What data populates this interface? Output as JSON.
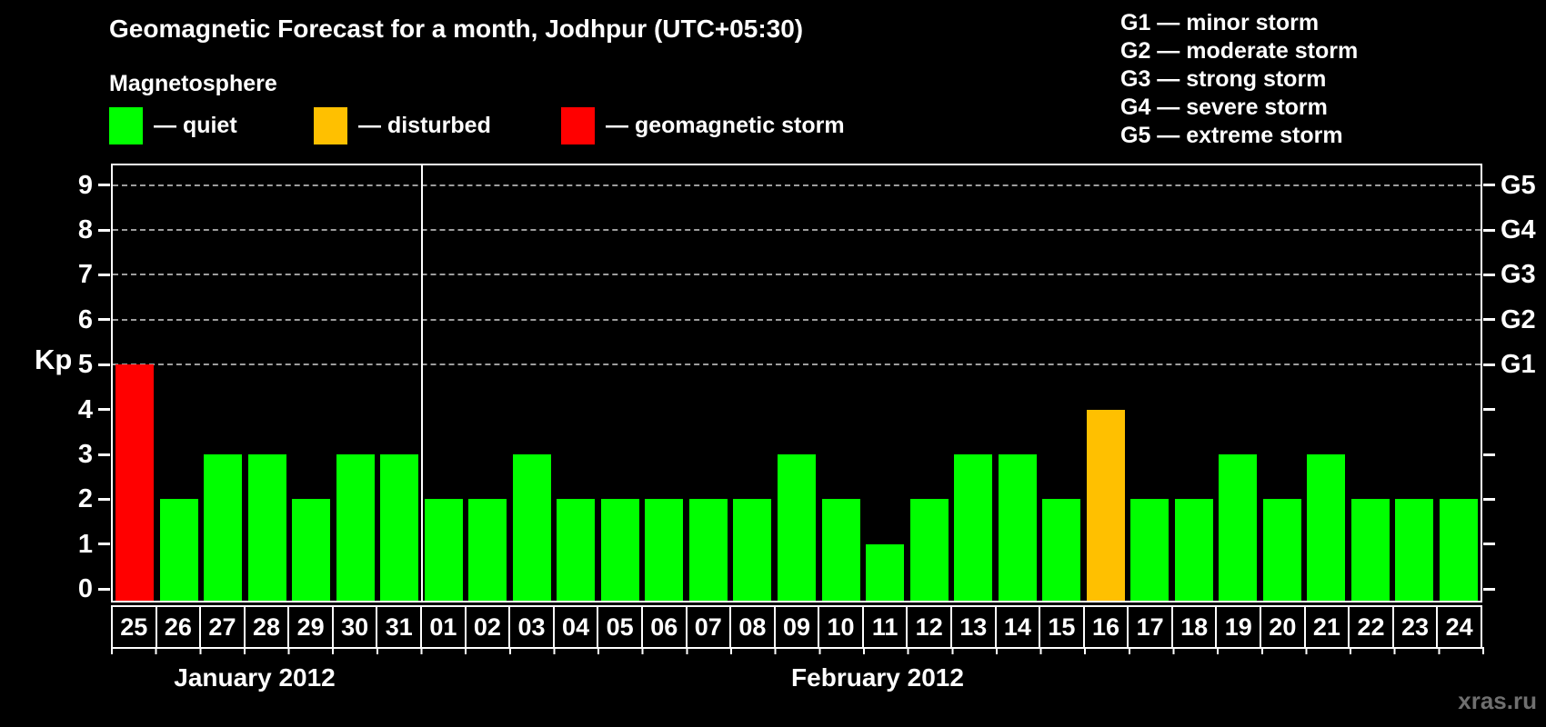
{
  "title": "Geomagnetic Forecast for a month, Jodhpur (UTC+05:30)",
  "legend": {
    "heading": "Magnetosphere",
    "items": [
      {
        "name": "quiet",
        "label": "— quiet",
        "color": "#00ff00"
      },
      {
        "name": "disturbed",
        "label": "— disturbed",
        "color": "#ffc000"
      },
      {
        "name": "storm",
        "label": "— geomagnetic storm",
        "color": "#ff0000"
      }
    ]
  },
  "storm_scale": [
    "G1 — minor storm",
    "G2 — moderate storm",
    "G3 — strong storm",
    "G4 — severe storm",
    "G5 — extreme storm"
  ],
  "watermark": "xras.ru",
  "chart_data": {
    "type": "bar",
    "title": "Geomagnetic Forecast for a month, Jodhpur (UTC+05:30)",
    "ylabel": "Kp",
    "ylim": [
      0,
      9
    ],
    "yticks": [
      0,
      1,
      2,
      3,
      4,
      5,
      6,
      7,
      8,
      9
    ],
    "dashed_gridlines_at": [
      5,
      6,
      7,
      8,
      9
    ],
    "right_axis": [
      {
        "value": 5,
        "label": "G1"
      },
      {
        "value": 6,
        "label": "G2"
      },
      {
        "value": 7,
        "label": "G3"
      },
      {
        "value": 8,
        "label": "G4"
      },
      {
        "value": 9,
        "label": "G5"
      }
    ],
    "thresholds": {
      "storm_min_kp": 5,
      "disturbed_min_kp": 4
    },
    "grid": "horizontal dashed lines at G1–G5 levels only",
    "legend_position": "top-left",
    "groups": [
      {
        "label": "January 2012",
        "categories": [
          "25",
          "26",
          "27",
          "28",
          "29",
          "30",
          "31"
        ],
        "values": [
          5,
          2,
          3,
          3,
          2,
          3,
          3
        ]
      },
      {
        "label": "February 2012",
        "categories": [
          "01",
          "02",
          "03",
          "04",
          "05",
          "06",
          "07",
          "08",
          "09",
          "10",
          "11",
          "12",
          "13",
          "14",
          "15",
          "16",
          "17",
          "18",
          "19",
          "20",
          "21",
          "22",
          "23",
          "24"
        ],
        "values": [
          2,
          2,
          3,
          2,
          2,
          2,
          2,
          2,
          3,
          2,
          1,
          2,
          3,
          3,
          2,
          4,
          2,
          2,
          3,
          2,
          3,
          2,
          2,
          2
        ]
      }
    ]
  }
}
